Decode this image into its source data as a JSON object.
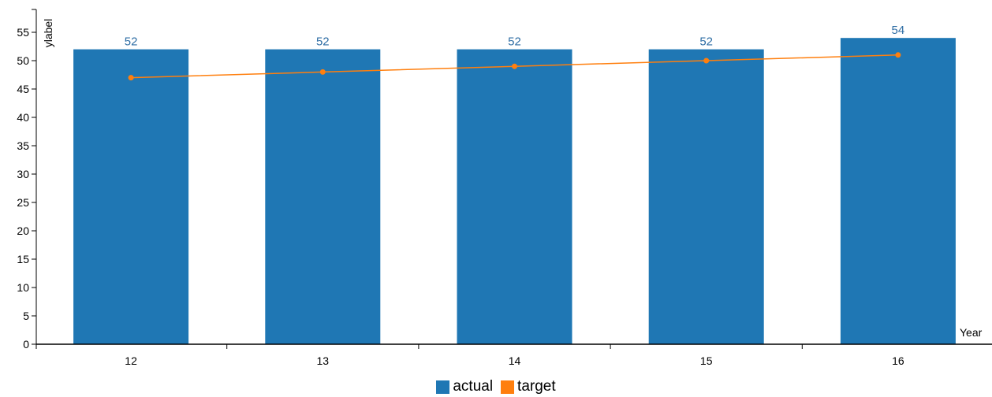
{
  "chart_data": {
    "type": "bar",
    "title": "",
    "xlabel": "Year",
    "ylabel": "ylabel",
    "categories": [
      "12",
      "13",
      "14",
      "15",
      "16"
    ],
    "ylim": [
      0,
      59
    ],
    "yticks": [
      0,
      5,
      10,
      15,
      20,
      25,
      30,
      35,
      40,
      45,
      50,
      55
    ],
    "grid": false,
    "legend_position": "bottom-center",
    "series": [
      {
        "name": "actual",
        "type": "bar",
        "color": "#1f77b4",
        "values": [
          52,
          52,
          52,
          52,
          54
        ]
      },
      {
        "name": "target",
        "type": "line",
        "color": "#ff7f0e",
        "values": [
          47,
          48,
          49,
          50,
          51
        ]
      }
    ],
    "data_labels": [
      "52",
      "52",
      "52",
      "52",
      "54"
    ],
    "label_color": "#2e6da4"
  }
}
